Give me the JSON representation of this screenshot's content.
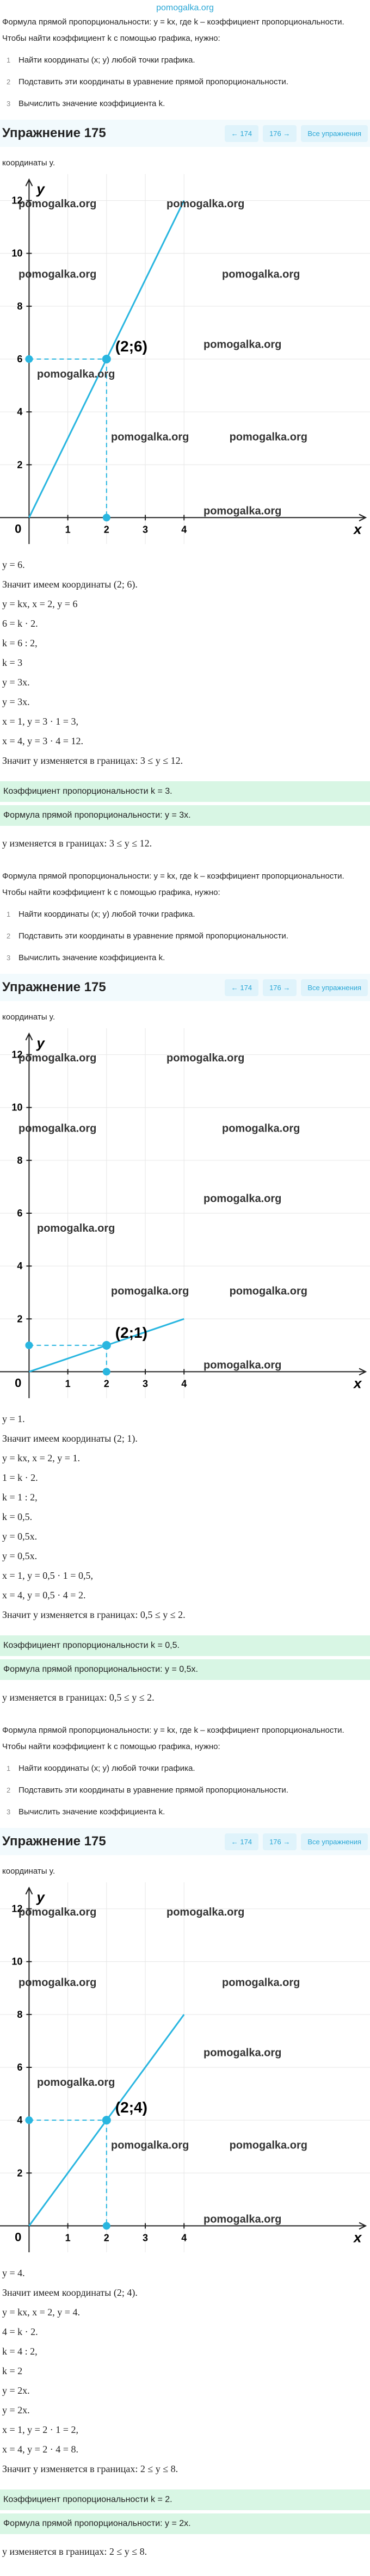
{
  "header": {
    "site": "pomogalka.org"
  },
  "sections": [
    {
      "intro": {
        "formula": "Формула прямой пропорциональности: y = kx, где k – коэффициент пропорциональности.",
        "method": "Чтобы найти коэффициент k с помощью графика, нужно:",
        "steps": [
          {
            "n": "1",
            "text": "Найти координаты (x; y) любой точки графика."
          },
          {
            "n": "2",
            "text": "Подставить эти координаты в уравнение прямой пропорциональности."
          },
          {
            "n": "3",
            "text": "Вычислить значение коэффициента k."
          }
        ]
      },
      "exercise": {
        "title": "Упражнение 175",
        "prev": "← 174",
        "next": "176 →",
        "all": "Все упражнения"
      },
      "lead": "координаты y.",
      "graph": {
        "xlim": [
          -0.75,
          8.8
        ],
        "ylim": [
          -1,
          13
        ],
        "xticks": [
          1,
          2,
          3,
          4
        ],
        "yticks": [
          2,
          4,
          6,
          8,
          10,
          12
        ],
        "grid": true,
        "color": "#29b6e0",
        "x_label": "x",
        "y_label": "y",
        "origin_label": "0",
        "line": {
          "x": [
            0,
            4
          ],
          "y": [
            0,
            12
          ]
        },
        "point": {
          "x": 2,
          "y": 6,
          "label": "(2;6)"
        },
        "watermarks": [
          "pomogalka.org",
          "pomogalka.org",
          "pomogalka.org",
          "pomogalka.org",
          "pomogalka.org",
          "pomogalka.org",
          "pomogalka.org",
          "pomogalka.org",
          "pomogalka.org"
        ]
      },
      "solution": [
        "y = 6.",
        "Значит имеем координаты (2; 6).",
        "y = kx, x = 2, y = 6",
        "6 = k · 2.",
        "k = 6 : 2,",
        "k = 3",
        "y = 3x.",
        "y = 3x.",
        "x = 1, y = 3 · 1 = 3,",
        "x = 4, y = 3 · 4 = 12.",
        "Значит y изменяется в границах: 3 ≤ y ≤ 12."
      ],
      "highlights": [
        "Коэффициент пропорциональности k = 3.",
        "Формула прямой пропорциональности: y = 3x."
      ],
      "conclusion": "y изменяется в границах: 3 ≤ y ≤ 12."
    },
    {
      "intro": {
        "formula": "Формула прямой пропорциональности: y = kx, где k – коэффициент пропорциональности.",
        "method": "Чтобы найти коэффициент k с помощью графика, нужно:",
        "steps": [
          {
            "n": "1",
            "text": "Найти координаты (x; y) любой точки графика."
          },
          {
            "n": "2",
            "text": "Подставить эти координаты в уравнение прямой пропорциональности."
          },
          {
            "n": "3",
            "text": "Вычислить значение коэффициента k."
          }
        ]
      },
      "exercise": {
        "title": "Упражнение 175",
        "prev": "← 174",
        "next": "176 →",
        "all": "Все упражнения"
      },
      "lead": "координаты y.",
      "graph": {
        "xlim": [
          -0.75,
          8.8
        ],
        "ylim": [
          -1,
          13
        ],
        "xticks": [
          1,
          2,
          3,
          4
        ],
        "yticks": [
          2,
          4,
          6,
          8,
          10,
          12
        ],
        "grid": true,
        "color": "#29b6e0",
        "x_label": "x",
        "y_label": "y",
        "origin_label": "0",
        "line": {
          "x": [
            0,
            4
          ],
          "y": [
            0,
            2
          ]
        },
        "point": {
          "x": 2,
          "y": 1,
          "label": "(2;1)"
        },
        "watermarks": [
          "pomogalka.org",
          "pomogalka.org",
          "pomogalka.org",
          "pomogalka.org",
          "pomogalka.org",
          "pomogalka.org",
          "pomogalka.org",
          "pomogalka.org",
          "pomogalka.org"
        ]
      },
      "solution": [
        "y = 1.",
        "Значит имеем координаты (2; 1).",
        "y = kx, x = 2, y = 1.",
        "1 = k · 2.",
        "k = 1 : 2,",
        "k = 0,5.",
        "y = 0,5x.",
        "y = 0,5x.",
        "x = 1, y = 0,5 · 1 = 0,5,",
        "x = 4, y = 0,5 · 4 = 2.",
        "Значит y изменяется в границах: 0,5 ≤ y ≤ 2."
      ],
      "highlights": [
        "Коэффициент пропорциональности k = 0,5.",
        "Формула прямой пропорциональности: y = 0,5x."
      ],
      "conclusion": "y изменяется в границах: 0,5 ≤ y ≤ 2."
    },
    {
      "intro": {
        "formula": "Формула прямой пропорциональности: y = kx, где k – коэффициент пропорциональности.",
        "method": "Чтобы найти коэффициент k с помощью графика, нужно:",
        "steps": [
          {
            "n": "1",
            "text": "Найти координаты (x; y) любой точки графика."
          },
          {
            "n": "2",
            "text": "Подставить эти координаты в уравнение прямой пропорциональности."
          },
          {
            "n": "3",
            "text": "Вычислить значение коэффициента k."
          }
        ]
      },
      "exercise": {
        "title": "Упражнение 175",
        "prev": "← 174",
        "next": "176 →",
        "all": "Все упражнения"
      },
      "lead": "координаты y.",
      "graph": {
        "xlim": [
          -0.75,
          8.8
        ],
        "ylim": [
          -1,
          13
        ],
        "xticks": [
          1,
          2,
          3,
          4
        ],
        "yticks": [
          2,
          4,
          6,
          8,
          10,
          12
        ],
        "grid": true,
        "color": "#29b6e0",
        "x_label": "x",
        "y_label": "y",
        "origin_label": "0",
        "line": {
          "x": [
            0,
            4
          ],
          "y": [
            0,
            8
          ]
        },
        "point": {
          "x": 2,
          "y": 4,
          "label": "(2;4)"
        },
        "watermarks": [
          "pomogalka.org",
          "pomogalka.org",
          "pomogalka.org",
          "pomogalka.org",
          "pomogalka.org",
          "pomogalka.org",
          "pomogalka.org",
          "pomogalka.org",
          "pomogalka.org"
        ]
      },
      "solution": [
        "y = 4.",
        "Значит имеем координаты (2; 4).",
        "y = kx, x = 2, y = 4.",
        "4 = k · 2.",
        "k = 4 : 2,",
        "k = 2",
        "y = 2x.",
        "y = 2x.",
        "x = 1, y = 2 · 1 = 2,",
        "x = 4, y = 2 · 4 = 8.",
        "Значит y изменяется в границах: 2 ≤ y ≤ 8."
      ],
      "highlights": [
        "Коэффициент пропорциональности k = 2.",
        "Формула прямой пропорциональности: y = 2x."
      ],
      "conclusion": "y изменяется в границах: 2 ≤ y ≤ 8."
    }
  ]
}
